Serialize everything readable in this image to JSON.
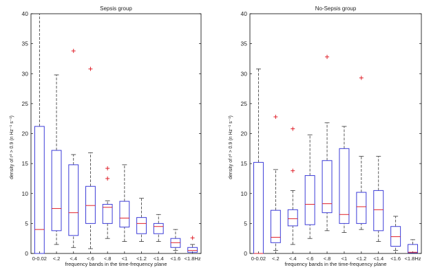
{
  "colors": {
    "box": "#3b3bd8",
    "median": "#e0202a",
    "outlier": "#e0202a",
    "whisker": "#333333",
    "axis": "#000000"
  },
  "chart_data": [
    {
      "type": "box",
      "title": "Sepsis group",
      "xlabel": "frequency bands in the time-frequency plane",
      "ylabel": "density of r² > 0.9   (n Hz⁻¹ s⁻¹)",
      "ylim": [
        0,
        40
      ],
      "yticks": [
        "0",
        "5",
        "10",
        "15",
        "20",
        "25",
        "30",
        "35",
        "40"
      ],
      "grid": false,
      "categories": [
        "0-0.02",
        "<.2",
        "<.4",
        "<.6",
        "<.8",
        "<1",
        "<1.2",
        "<1.4",
        "<1.6",
        "<1.8Hz"
      ],
      "boxes": [
        {
          "low": 0.0,
          "q1": 0.0,
          "median": 4.0,
          "q3": 21.2,
          "high": 40.0,
          "outliers": []
        },
        {
          "low": 1.5,
          "q1": 3.8,
          "median": 7.5,
          "q3": 17.2,
          "high": 29.8,
          "outliers": []
        },
        {
          "low": 1.0,
          "q1": 3.0,
          "median": 6.8,
          "q3": 14.8,
          "high": 16.5,
          "outliers": [
            33.8
          ]
        },
        {
          "low": 0.8,
          "q1": 5.0,
          "median": 8.0,
          "q3": 11.2,
          "high": 16.8,
          "outliers": [
            30.8
          ]
        },
        {
          "low": 2.5,
          "q1": 5.0,
          "median": 7.7,
          "q3": 8.2,
          "high": 8.8,
          "outliers": [
            12.5,
            14.2
          ]
        },
        {
          "low": 2.0,
          "q1": 4.4,
          "median": 5.9,
          "q3": 8.7,
          "high": 14.8,
          "outliers": []
        },
        {
          "low": 2.0,
          "q1": 3.3,
          "median": 5.0,
          "q3": 6.0,
          "high": 9.2,
          "outliers": []
        },
        {
          "low": 2.0,
          "q1": 3.3,
          "median": 4.5,
          "q3": 5.0,
          "high": 6.5,
          "outliers": []
        },
        {
          "low": 0.5,
          "q1": 1.0,
          "median": 1.8,
          "q3": 2.5,
          "high": 4.0,
          "outliers": []
        },
        {
          "low": 0.0,
          "q1": 0.2,
          "median": 0.5,
          "q3": 1.0,
          "high": 1.5,
          "outliers": [
            2.6
          ]
        }
      ]
    },
    {
      "type": "box",
      "title": "No-Sepsis group",
      "xlabel": "frequency bands in the time-frequency plane",
      "ylabel": "density of r² > 0.9   (n Hz⁻¹ s⁻¹)",
      "ylim": [
        0,
        40
      ],
      "yticks": [
        "0",
        "5",
        "10",
        "15",
        "20",
        "25",
        "30",
        "35",
        "40"
      ],
      "grid": false,
      "categories": [
        "0-0.02",
        "<.2",
        "<.4",
        "<.6",
        "<.8",
        "<1",
        "<1.2",
        "<1.4",
        "<1.6",
        "<1.8Hz"
      ],
      "boxes": [
        {
          "low": 0.0,
          "q1": 0.0,
          "median": 0.0,
          "q3": 15.2,
          "high": 30.8,
          "outliers": []
        },
        {
          "low": 0.5,
          "q1": 1.8,
          "median": 2.7,
          "q3": 7.2,
          "high": 14.0,
          "outliers": [
            22.8
          ]
        },
        {
          "low": 1.5,
          "q1": 4.6,
          "median": 5.8,
          "q3": 7.3,
          "high": 10.5,
          "outliers": [
            13.8,
            20.8
          ]
        },
        {
          "low": 2.5,
          "q1": 4.8,
          "median": 8.2,
          "q3": 13.0,
          "high": 19.8,
          "outliers": []
        },
        {
          "low": 3.8,
          "q1": 6.8,
          "median": 8.3,
          "q3": 15.5,
          "high": 21.8,
          "outliers": [
            32.8
          ]
        },
        {
          "low": 3.5,
          "q1": 5.0,
          "median": 6.5,
          "q3": 17.5,
          "high": 21.2,
          "outliers": []
        },
        {
          "low": 4.0,
          "q1": 5.0,
          "median": 7.8,
          "q3": 10.2,
          "high": 16.2,
          "outliers": [
            29.3
          ]
        },
        {
          "low": 2.0,
          "q1": 3.8,
          "median": 7.3,
          "q3": 10.5,
          "high": 16.2,
          "outliers": []
        },
        {
          "low": 0.5,
          "q1": 1.2,
          "median": 2.8,
          "q3": 4.5,
          "high": 6.2,
          "outliers": []
        },
        {
          "low": 0.0,
          "q1": 0.1,
          "median": 0.2,
          "q3": 1.5,
          "high": 2.3,
          "outliers": []
        }
      ]
    }
  ]
}
